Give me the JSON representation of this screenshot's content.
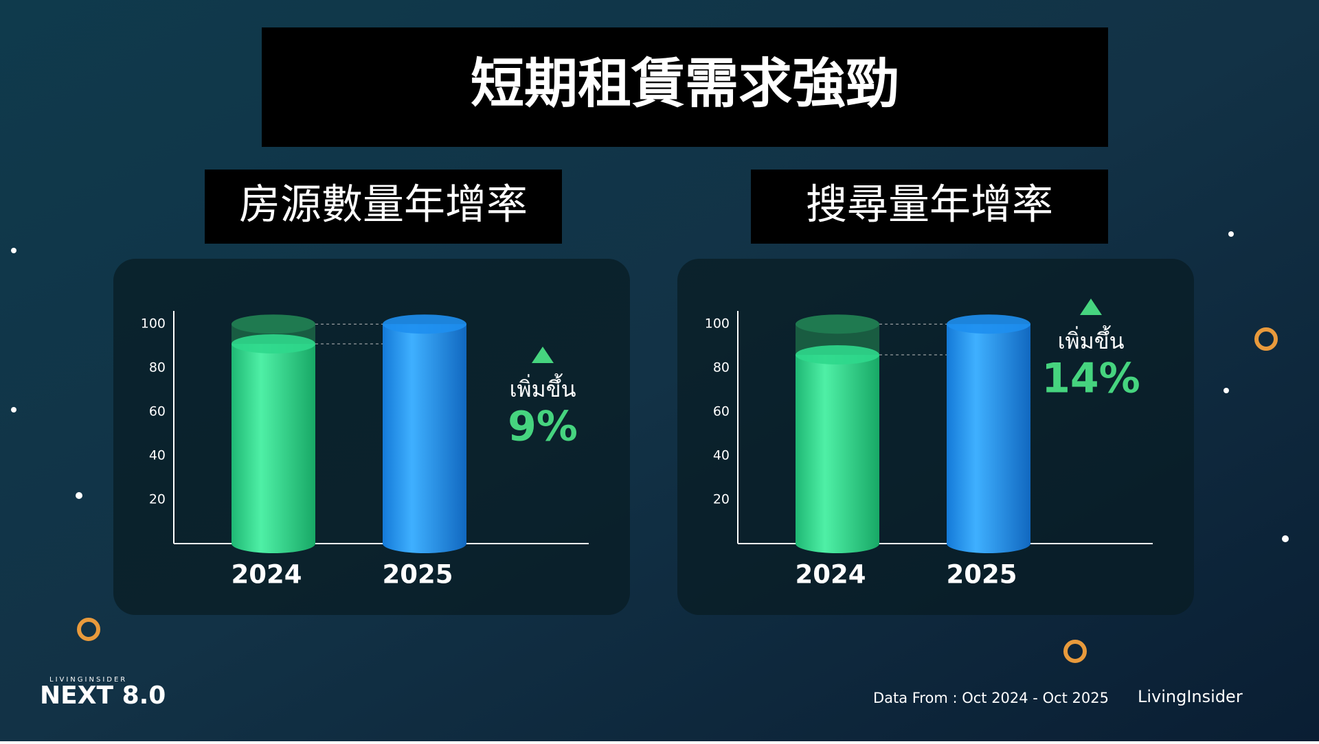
{
  "title": "短期租賃需求強勁",
  "footer": {
    "source": "Data From : Oct 2024 - Oct  2025",
    "logo": "LivingInsider",
    "brand_small": "LIVINGINSIDER",
    "brand": "NEXT 8.0"
  },
  "chart_data": [
    {
      "type": "bar",
      "title": "房源數量年增率",
      "categories": [
        "2024",
        "2025"
      ],
      "values": [
        91,
        100
      ],
      "colors": [
        "#2fd88c",
        "#1e8ff0"
      ],
      "ylim": [
        0,
        106
      ],
      "yticks": [
        20,
        40,
        60,
        80,
        100
      ],
      "annotation": {
        "text": "เพิ่มขึ้น",
        "change": "9%",
        "color": "#46d47f"
      }
    },
    {
      "type": "bar",
      "title": "搜尋量年增率",
      "categories": [
        "2024",
        "2025"
      ],
      "values": [
        86,
        100
      ],
      "colors": [
        "#2fd88c",
        "#1e8ff0"
      ],
      "ylim": [
        0,
        106
      ],
      "yticks": [
        20,
        40,
        60,
        80,
        100
      ],
      "annotation": {
        "text": "เพิ่มขึ้น",
        "change": "14%",
        "color": "#46d47f"
      }
    }
  ]
}
